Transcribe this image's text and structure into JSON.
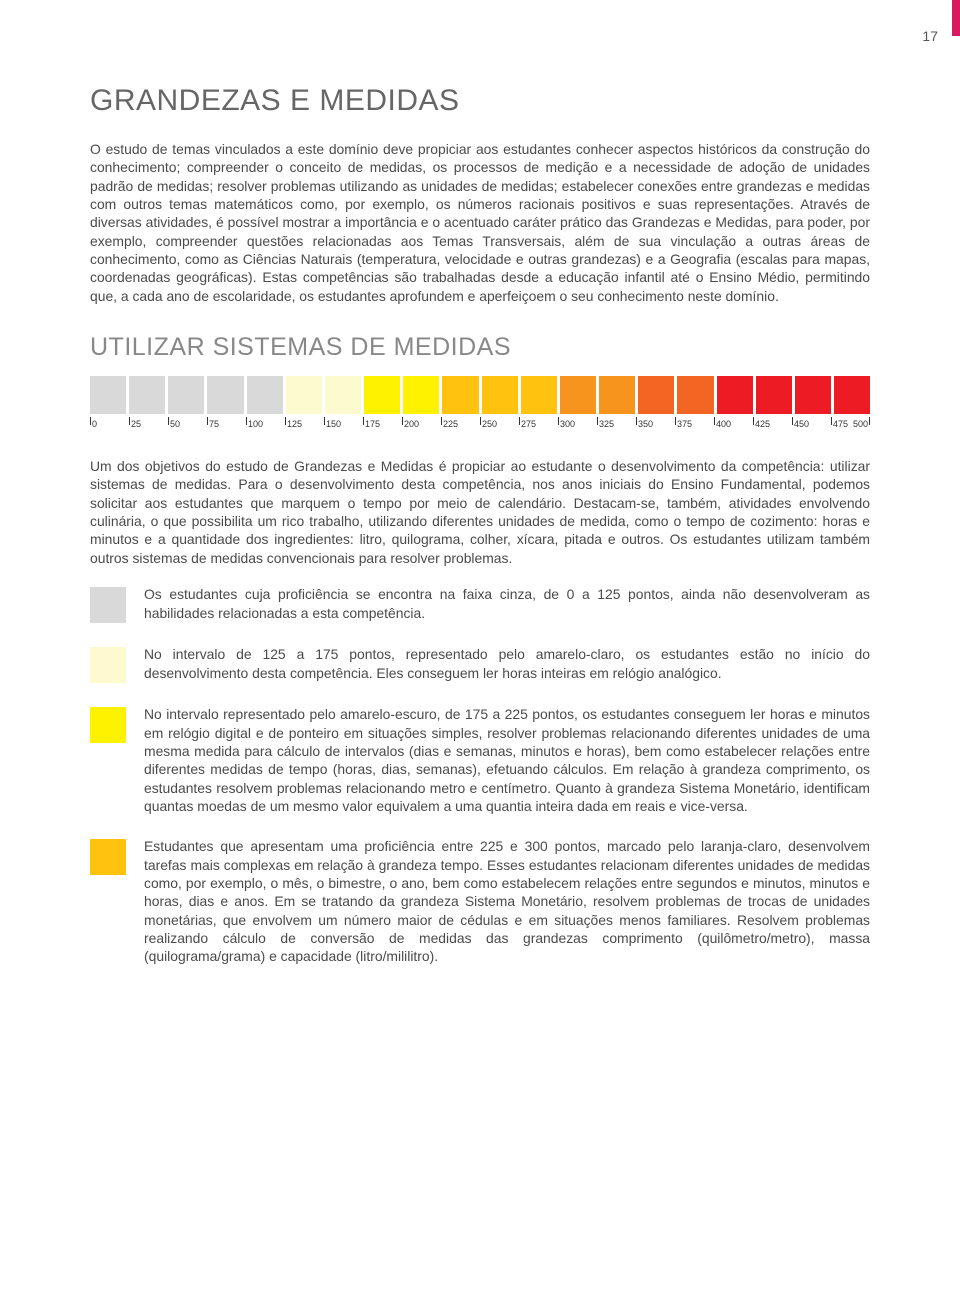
{
  "page": {
    "number": "17",
    "accent_color": "#d81b60"
  },
  "section": {
    "title": "GRANDEZAS E MEDIDAS",
    "intro": "O estudo de temas vinculados a este domínio deve propiciar aos estudantes conhecer aspectos históricos da construção do conhecimento; compreender o conceito de medidas, os processos de medição e a necessidade de adoção de unidades padrão de medidas; resolver problemas utilizando as unidades de medidas; estabelecer conexões entre grandezas e medidas com outros temas matemáticos como, por exemplo, os números racionais positivos e suas representações. Através de diversas atividades, é possível mostrar a importância e o acentuado caráter prático das Grandezas e Medidas, para poder, por exemplo, compreender questões relacionadas aos Temas Transversais, além de sua vinculação a outras áreas de conhecimento, como as Ciências Naturais (temperatura, velocidade e outras grandezas) e a Geografia (escalas para mapas, coordenadas geográficas). Estas competências são trabalhadas desde a educação infantil até o Ensino Médio, permitindo que, a cada ano de escolaridade, os estudantes aprofundem e aperfeiçoem o seu conhecimento neste domínio."
  },
  "subsection": {
    "title": "UTILIZAR SISTEMAS DE MEDIDAS",
    "intro": "Um dos objetivos do estudo de Grandezas e Medidas é propiciar ao estudante o desenvolvimento da competência: utilizar sistemas de medidas. Para o desenvolvimento desta competência, nos anos iniciais do Ensino Fundamental, podemos solicitar aos estudantes que marquem o tempo por meio de calendário. Destacam-se, também, atividades envolvendo culinária, o que possibilita um rico trabalho, utilizando diferentes unidades de medida, como o tempo de cozimento: horas e minutos e a quantidade dos ingredientes: litro, quilograma, colher, xícara, pitada e outros. Os estudantes utilizam também outros sistemas de medidas convencionais para resolver problemas."
  },
  "scale": {
    "ticks": [
      "0",
      "25",
      "50",
      "75",
      "100",
      "125",
      "150",
      "175",
      "200",
      "225",
      "250",
      "275",
      "300",
      "325",
      "350",
      "375",
      "400",
      "425",
      "450",
      "475",
      "500"
    ],
    "cell_colors": [
      "#d9d9d9",
      "#d9d9d9",
      "#d9d9d9",
      "#d9d9d9",
      "#d9d9d9",
      "#fdfad0",
      "#fdfad0",
      "#fff200",
      "#fff200",
      "#ffc20e",
      "#ffc20e",
      "#ffc20e",
      "#f7941e",
      "#f7941e",
      "#f26522",
      "#f26522",
      "#ed1c24",
      "#ed1c24",
      "#ed1c24",
      "#ed1c24"
    ]
  },
  "levels": [
    {
      "color": "#d9d9d9",
      "text": "Os estudantes cuja proficiência se encontra na faixa cinza, de 0 a 125 pontos, ainda não desenvolveram as habilidades relacionadas a esta competência."
    },
    {
      "color": "#fdfad0",
      "text": "No intervalo de 125 a 175 pontos, representado pelo amarelo-claro, os estudantes estão no início do desenvolvimento desta competência. Eles conseguem ler horas inteiras em relógio analógico."
    },
    {
      "color": "#fff200",
      "text": "No intervalo representado pelo amarelo-escuro, de 175 a 225 pontos, os estudantes conseguem ler horas e minutos em relógio digital e de ponteiro em situações simples, resolver problemas relacionando diferentes unidades de uma mesma medida para cálculo de intervalos (dias e semanas, minutos e horas), bem como estabelecer relações entre diferentes medidas de tempo (horas, dias, semanas), efetuando cálculos. Em relação à grandeza comprimento, os estudantes resolvem problemas relacionando metro e centímetro. Quanto à grandeza Sistema Monetário, identificam quantas moedas de um mesmo valor equivalem a uma quantia inteira dada em reais e vice-versa."
    },
    {
      "color": "#ffc20e",
      "text": "Estudantes que apresentam uma proficiência entre 225 e 300 pontos, marcado pelo laranja-claro, desenvolvem tarefas mais complexas em relação à grandeza tempo. Esses estudantes relacionam diferentes unidades de medidas como, por exemplo, o mês, o bimestre, o ano, bem como estabelecem relações entre segundos e minutos, minutos e horas, dias e anos. Em se tratando da grandeza Sistema Monetário, resolvem problemas de trocas de unidades monetárias, que envolvem um número maior de cédulas e em situações menos familiares. Resolvem problemas realizando cálculo de conversão de medidas das grandezas comprimento (quilômetro/metro), massa (quilograma/grama) e capacidade (litro/mililitro)."
    }
  ]
}
